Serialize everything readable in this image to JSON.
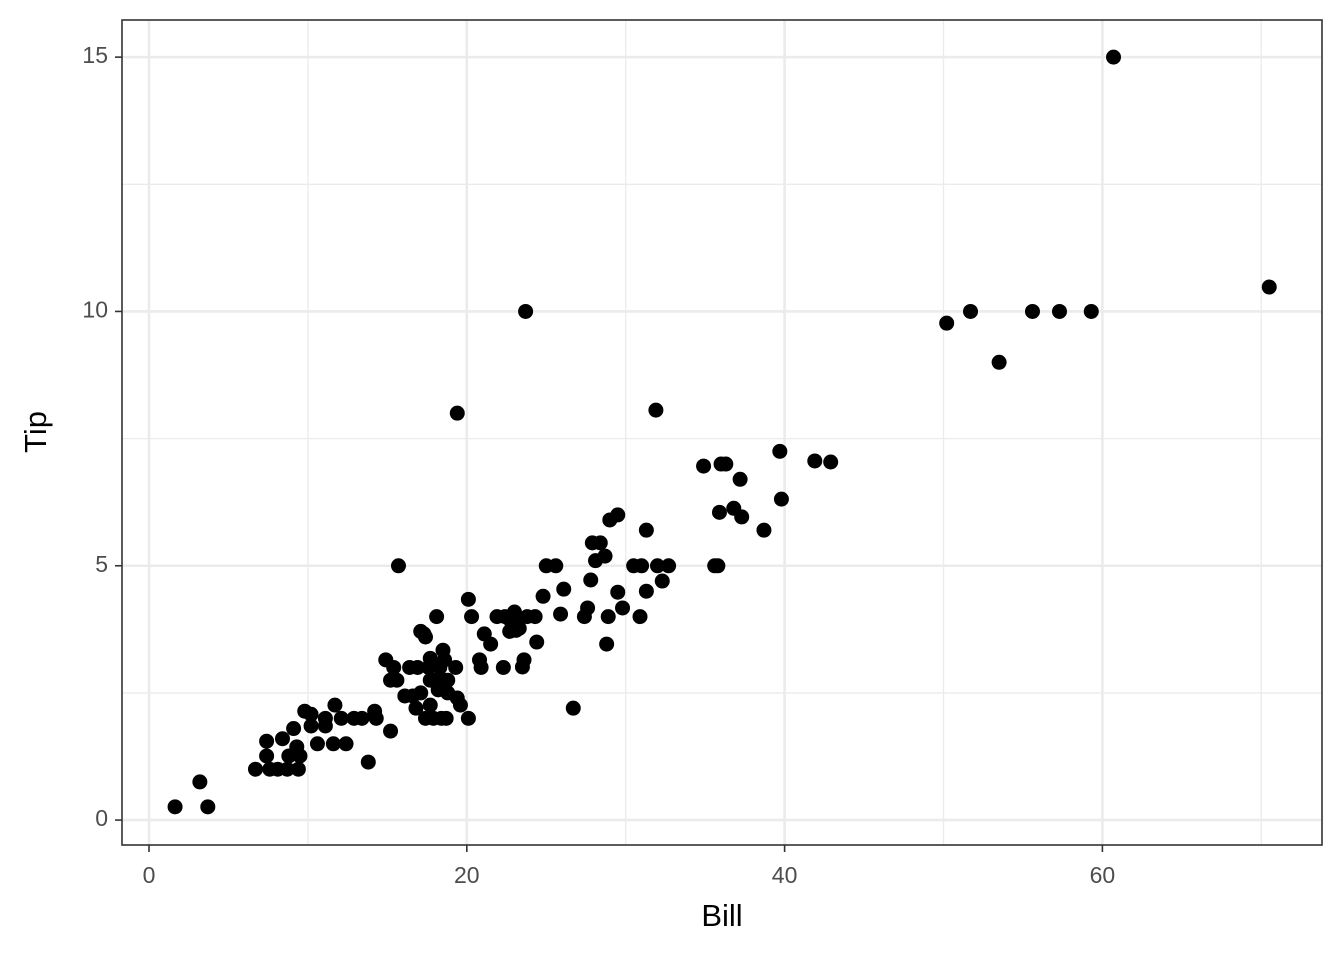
{
  "chart_data": {
    "type": "scatter",
    "x_label": "Bill",
    "y_label": "Tip",
    "color": "#000000",
    "grid": true,
    "xlim": [
      -1.7,
      73.82
    ],
    "ylim": [
      -0.49,
      15.73
    ],
    "xticks": [
      0,
      20,
      40,
      60
    ],
    "yticks": [
      0,
      5,
      10,
      15
    ],
    "x_minor_grid": [
      10,
      30,
      50,
      70
    ],
    "y_minor_grid": [
      2.5,
      7.5,
      12.5
    ],
    "x": [
      1.64,
      3.2,
      3.7,
      6.7,
      7.4,
      7.4,
      7.6,
      8.1,
      8.4,
      8.7,
      8.8,
      9.1,
      9.3,
      9.4,
      9.5,
      9.8,
      10.2,
      10.2,
      10.6,
      11.1,
      11.1,
      11.6,
      11.7,
      12.1,
      12.4,
      12.9,
      13.4,
      13.8,
      14.2,
      14.3,
      14.9,
      15.2,
      15.2,
      15.4,
      15.7,
      15.6,
      16.1,
      16.4,
      16.6,
      16.8,
      16.9,
      17.1,
      17.1,
      17.3,
      17.4,
      17.4,
      17.6,
      17.7,
      17.7,
      17.7,
      17.9,
      18.1,
      18.0,
      18.2,
      18.3,
      18.4,
      18.5,
      18.6,
      18.6,
      18.7,
      18.8,
      18.8,
      19.3,
      19.4,
      19.4,
      19.6,
      20.1,
      20.1,
      20.3,
      20.8,
      20.9,
      21.1,
      21.5,
      21.9,
      22.3,
      22.4,
      22.7,
      22.8,
      22.9,
      23.0,
      23.1,
      23.2,
      23.3,
      23.5,
      23.6,
      23.7,
      23.8,
      24.3,
      24.4,
      24.8,
      25.0,
      25.6,
      25.9,
      26.1,
      26.7,
      27.4,
      27.6,
      27.8,
      27.9,
      28.1,
      28.4,
      28.7,
      28.8,
      28.9,
      29.0,
      29.5,
      29.5,
      29.8,
      30.5,
      30.9,
      31.0,
      31.3,
      31.3,
      31.9,
      32.0,
      32.3,
      32.7,
      34.9,
      35.6,
      35.8,
      35.9,
      36.0,
      36.3,
      36.8,
      37.2,
      37.3,
      38.7,
      39.7,
      39.8,
      41.9,
      42.9,
      50.2,
      51.7,
      53.5,
      55.6,
      57.3,
      59.3,
      60.7,
      70.5
    ],
    "values": [
      0.26,
      0.75,
      0.26,
      1.0,
      1.55,
      1.26,
      1.0,
      1.0,
      1.6,
      1.0,
      1.26,
      1.8,
      1.44,
      1.0,
      1.26,
      2.14,
      2.08,
      1.85,
      1.5,
      2.0,
      1.85,
      1.5,
      2.26,
      2.0,
      1.5,
      2.0,
      2.0,
      1.14,
      2.14,
      2.0,
      3.15,
      1.75,
      2.75,
      3.0,
      5.0,
      2.75,
      2.44,
      3.0,
      2.44,
      2.2,
      3.0,
      3.71,
      2.5,
      3.66,
      3.6,
      2.0,
      3.0,
      2.75,
      3.18,
      2.26,
      2.0,
      4.0,
      2.75,
      2.56,
      3.0,
      2.0,
      3.34,
      2.75,
      3.15,
      2.0,
      2.5,
      2.75,
      3.0,
      8.0,
      2.4,
      2.26,
      4.34,
      2.0,
      4.0,
      3.15,
      3.0,
      3.66,
      3.46,
      4.0,
      3.0,
      4.0,
      3.71,
      3.9,
      4.0,
      4.09,
      3.73,
      3.9,
      3.77,
      3.01,
      3.15,
      10.0,
      4.0,
      4.0,
      3.5,
      4.4,
      5.0,
      5.0,
      4.05,
      4.54,
      2.2,
      4.0,
      4.17,
      4.72,
      5.45,
      5.1,
      5.45,
      5.19,
      3.46,
      4.0,
      5.9,
      6.0,
      4.48,
      4.17,
      5.0,
      4.0,
      5.0,
      5.7,
      4.5,
      8.06,
      5.0,
      4.7,
      5.0,
      6.96,
      5.0,
      5.0,
      6.05,
      7.0,
      7.0,
      6.13,
      6.7,
      5.96,
      5.7,
      7.25,
      6.31,
      7.06,
      7.04,
      9.77,
      10.0,
      9.0,
      10.0,
      10.0,
      10.0,
      15.0,
      10.48
    ]
  }
}
